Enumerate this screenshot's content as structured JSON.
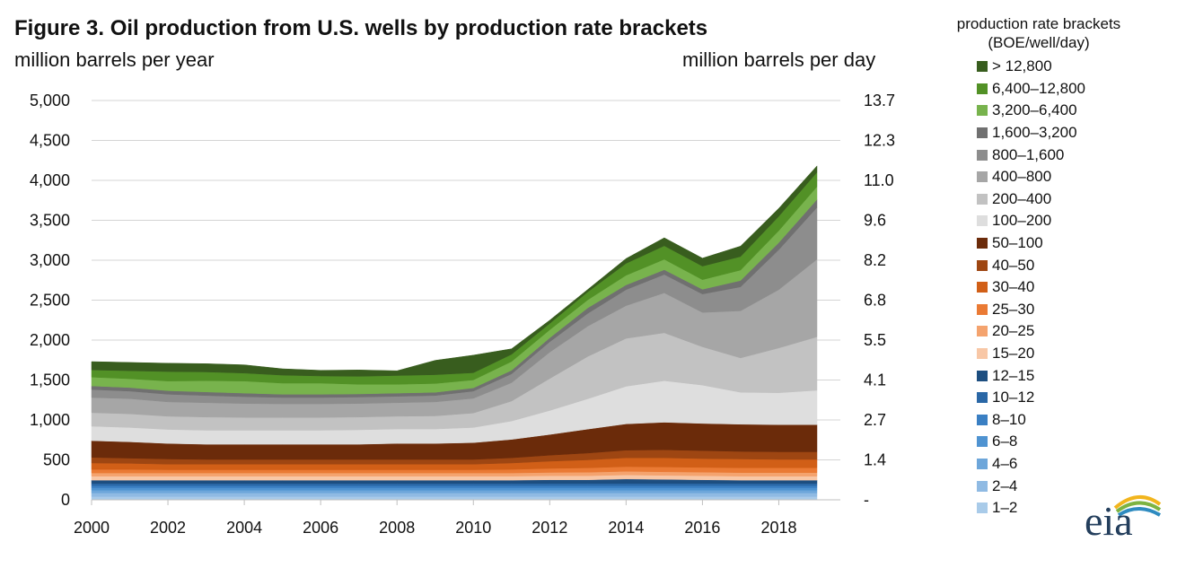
{
  "chart_data": {
    "type": "area",
    "stacked": true,
    "title": "Figure 3. Oil production from U.S. wells by production rate brackets",
    "ylabel_left": "million barrels  per year",
    "ylabel_right": "million barrels per day",
    "legend_title_lines": [
      "production rate brackets",
      "(BOE/well/day)"
    ],
    "legend_placement": "right",
    "grid": "horizontal",
    "x": [
      2000,
      2001,
      2002,
      2003,
      2004,
      2005,
      2006,
      2007,
      2008,
      2009,
      2010,
      2011,
      2012,
      2013,
      2014,
      2015,
      2016,
      2017,
      2018,
      2019
    ],
    "xlim": [
      2000,
      2019
    ],
    "x_ticks": [
      "2000",
      "2002",
      "2004",
      "2006",
      "2008",
      "2010",
      "2012",
      "2014",
      "2016",
      "2018"
    ],
    "ylim": [
      0,
      5000
    ],
    "y_ticks": [
      "0",
      "500",
      "1,000",
      "1,500",
      "2,000",
      "2,500",
      "3,000",
      "3,500",
      "4,000",
      "4,500",
      "5,000"
    ],
    "y_right_ticks": [
      "-",
      "1.4",
      "2.7",
      "4.1",
      "5.5",
      "6.8",
      "8.2",
      "9.6",
      "11.0",
      "12.3",
      "13.7"
    ],
    "series": [
      {
        "name": "1–2",
        "color": "#a9cbe9",
        "values": [
          40,
          40,
          40,
          40,
          40,
          40,
          40,
          40,
          40,
          40,
          40,
          40,
          40,
          40,
          40,
          40,
          40,
          40,
          40,
          40
        ]
      },
      {
        "name": "2–4",
        "color": "#8fbae3",
        "values": [
          45,
          45,
          45,
          45,
          45,
          45,
          45,
          45,
          45,
          45,
          45,
          45,
          45,
          45,
          45,
          45,
          45,
          45,
          45,
          45
        ]
      },
      {
        "name": "4–6",
        "color": "#6da6da",
        "values": [
          35,
          35,
          35,
          35,
          35,
          35,
          35,
          35,
          35,
          35,
          35,
          35,
          35,
          35,
          35,
          35,
          35,
          35,
          35,
          35
        ]
      },
      {
        "name": "6–8",
        "color": "#4f93d1",
        "values": [
          30,
          30,
          30,
          30,
          30,
          30,
          30,
          30,
          30,
          30,
          30,
          30,
          30,
          30,
          30,
          30,
          30,
          30,
          30,
          30
        ]
      },
      {
        "name": "8–10",
        "color": "#3a7fc3",
        "values": [
          28,
          28,
          28,
          28,
          28,
          28,
          28,
          28,
          28,
          28,
          28,
          28,
          28,
          28,
          28,
          28,
          28,
          28,
          28,
          28
        ]
      },
      {
        "name": "10–12",
        "color": "#2a67a6",
        "values": [
          28,
          28,
          28,
          28,
          28,
          28,
          28,
          28,
          28,
          28,
          28,
          28,
          28,
          28,
          28,
          28,
          28,
          28,
          28,
          28
        ]
      },
      {
        "name": "12–15",
        "color": "#1d4e80",
        "values": [
          40,
          40,
          40,
          40,
          40,
          40,
          40,
          40,
          40,
          40,
          40,
          40,
          45,
          45,
          55,
          50,
          45,
          40,
          40,
          40
        ]
      },
      {
        "name": "15–20",
        "color": "#f8c7a6",
        "values": [
          50,
          50,
          50,
          50,
          50,
          50,
          50,
          50,
          50,
          50,
          50,
          50,
          50,
          50,
          50,
          50,
          50,
          50,
          50,
          50
        ]
      },
      {
        "name": "20–25",
        "color": "#f4a36e",
        "values": [
          40,
          40,
          40,
          40,
          40,
          40,
          40,
          40,
          40,
          40,
          40,
          40,
          42,
          44,
          45,
          45,
          45,
          45,
          45,
          45
        ]
      },
      {
        "name": "25–30",
        "color": "#ea7a34",
        "values": [
          45,
          45,
          40,
          40,
          40,
          40,
          40,
          40,
          40,
          40,
          40,
          45,
          50,
          55,
          60,
          60,
          60,
          60,
          60,
          60
        ]
      },
      {
        "name": "30–40",
        "color": "#d15f17",
        "values": [
          80,
          75,
          70,
          70,
          70,
          70,
          70,
          70,
          70,
          70,
          70,
          80,
          90,
          100,
          110,
          115,
          110,
          110,
          105,
          105
        ]
      },
      {
        "name": "40–50",
        "color": "#9e4612",
        "values": [
          70,
          65,
          65,
          60,
          60,
          60,
          60,
          60,
          60,
          60,
          60,
          65,
          75,
          85,
          95,
          100,
          100,
          95,
          95,
          95
        ]
      },
      {
        "name": "50–100",
        "color": "#6b2b0a",
        "values": [
          210,
          205,
          195,
          190,
          190,
          190,
          190,
          190,
          200,
          200,
          210,
          230,
          260,
          300,
          330,
          345,
          340,
          340,
          340,
          340
        ]
      },
      {
        "name": "100–200",
        "color": "#dedede",
        "values": [
          180,
          180,
          175,
          175,
          175,
          175,
          175,
          180,
          180,
          180,
          190,
          230,
          300,
          380,
          470,
          520,
          480,
          400,
          400,
          430
        ]
      },
      {
        "name": "200–400",
        "color": "#c2c2c2",
        "values": [
          170,
          170,
          165,
          165,
          160,
          160,
          160,
          160,
          160,
          165,
          180,
          250,
          400,
          530,
          600,
          600,
          480,
          430,
          560,
          670
        ]
      },
      {
        "name": "400–800",
        "color": "#a6a6a6",
        "values": [
          190,
          190,
          180,
          180,
          175,
          170,
          170,
          170,
          170,
          175,
          185,
          230,
          330,
          380,
          410,
          500,
          430,
          590,
          730,
          970
        ]
      },
      {
        "name": "800–1,600",
        "color": "#8d8d8d",
        "values": [
          100,
          95,
          95,
          90,
          85,
          80,
          80,
          80,
          80,
          80,
          90,
          110,
          130,
          160,
          200,
          230,
          230,
          300,
          500,
          650
        ]
      },
      {
        "name": "1,600–3,200",
        "color": "#707070",
        "values": [
          45,
          45,
          45,
          45,
          45,
          40,
          40,
          40,
          40,
          40,
          40,
          45,
          50,
          70,
          60,
          60,
          60,
          80,
          90,
          100
        ]
      },
      {
        "name": "3,200–6,400",
        "color": "#78b34d",
        "values": [
          110,
          110,
          120,
          140,
          150,
          140,
          140,
          120,
          110,
          110,
          100,
          110,
          100,
          100,
          120,
          130,
          120,
          130,
          150,
          160
        ]
      },
      {
        "name": "6,400–12,800",
        "color": "#529126",
        "values": [
          90,
          100,
          120,
          110,
          100,
          100,
          90,
          100,
          110,
          110,
          90,
          90,
          80,
          100,
          150,
          170,
          170,
          170,
          180,
          180
        ]
      },
      {
        "name": "> 12,800",
        "color": "#385d1e",
        "values": [
          104,
          104,
          104,
          104,
          104,
          80,
          70,
          80,
          60,
          180,
          220,
          70,
          40,
          30,
          60,
          100,
          100,
          130,
          100,
          80
        ]
      }
    ]
  },
  "eia_logo_text": "eia"
}
